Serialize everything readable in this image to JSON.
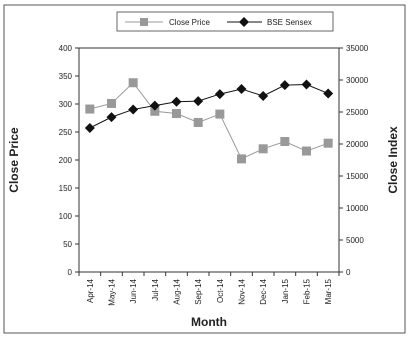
{
  "chart_data": {
    "type": "line",
    "xlabel": "Month",
    "ylabel_left": "Close Price",
    "ylabel_right": "Close Index",
    "categories": [
      "Apr-14",
      "May-14",
      "Jun-14",
      "Jul-14",
      "Aug-14",
      "Sep-14",
      "Oct-14",
      "Nov-14",
      "Dec-14",
      "Jan-15",
      "Feb-15",
      "Mar-15"
    ],
    "ylim_left": [
      0,
      400
    ],
    "yticks_left": [
      0,
      50,
      100,
      150,
      200,
      250,
      300,
      350,
      400
    ],
    "ylim_right": [
      0,
      35000
    ],
    "yticks_right": [
      0,
      5000,
      10000,
      15000,
      20000,
      25000,
      30000,
      35000
    ],
    "legend_position": "top-center",
    "grid": false,
    "series": [
      {
        "name": "Close Price",
        "axis": "left",
        "color": "#999999",
        "marker": "square",
        "values": [
          291,
          301,
          338,
          287,
          283,
          267,
          282,
          202,
          220,
          233,
          216,
          230
        ]
      },
      {
        "name": "BSE Sensex",
        "axis": "right",
        "color": "#111111",
        "marker": "diamond",
        "values": [
          22500,
          24200,
          25400,
          26000,
          26600,
          26700,
          27800,
          28600,
          27500,
          29200,
          29300,
          27900
        ]
      }
    ]
  }
}
